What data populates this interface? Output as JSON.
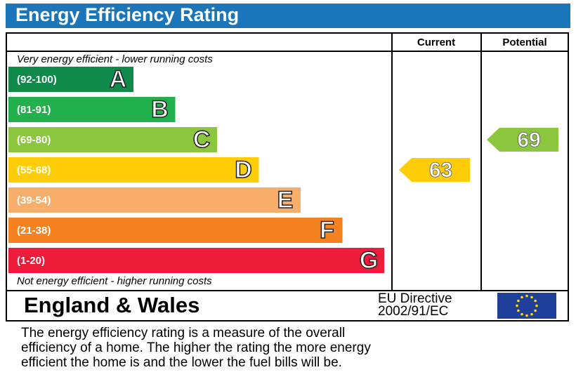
{
  "title": "Energy Efficiency Rating",
  "columns": [
    "Current",
    "Potential"
  ],
  "top_note": "Very energy efficient - lower running costs",
  "bands": [
    {
      "range": "(92-100)",
      "letter": "A",
      "color": "#0f8a4a"
    },
    {
      "range": "(81-91)",
      "letter": "B",
      "color": "#21b04b"
    },
    {
      "range": "(69-80)",
      "letter": "C",
      "color": "#8cc63f"
    },
    {
      "range": "(55-68)",
      "letter": "D",
      "color": "#fecd07"
    },
    {
      "range": "(39-54)",
      "letter": "E",
      "color": "#f8ae6b"
    },
    {
      "range": "(21-38)",
      "letter": "F",
      "color": "#f58220"
    },
    {
      "range": "(1-20)",
      "letter": "G",
      "color": "#ec1c3a"
    }
  ],
  "bottom_note": "Not energy efficient - higher running costs",
  "current": {
    "value": 63
  },
  "potential": {
    "value": 69
  },
  "region": "England & Wales",
  "directive": [
    "EU Directive",
    "2002/91/EC"
  ],
  "description": [
    "The energy efficiency rating is a measure of the overall",
    "efficiency of a home.  The higher the rating the more energy",
    "efficient the home is and the lower the fuel bills will be."
  ]
}
